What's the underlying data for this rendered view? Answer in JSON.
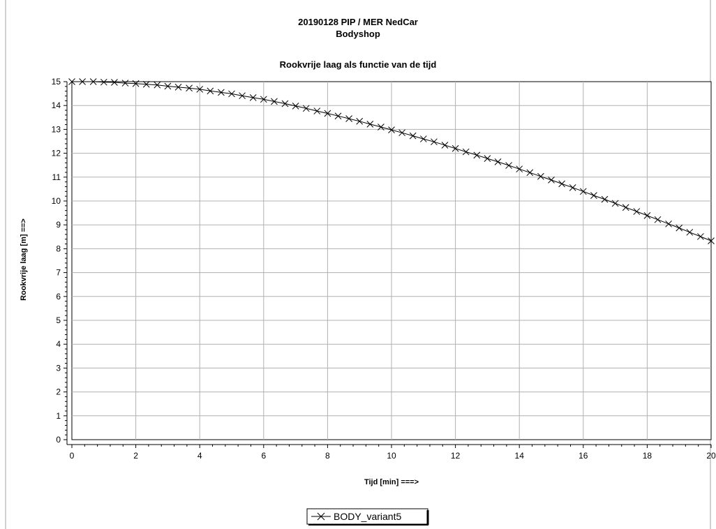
{
  "chart_data": {
    "type": "line",
    "title": "20190128 PIP / MER NedCar",
    "subtitle": "Bodyshop",
    "plot_title": "Rookvrije laag  als functie van de tijd",
    "xlabel": "Tijd [min] ===>",
    "ylabel": "Rookvrije laag [m] ==>",
    "xlim": [
      0,
      20
    ],
    "ylim": [
      0,
      15
    ],
    "x_ticks": [
      0,
      2,
      4,
      6,
      8,
      10,
      12,
      14,
      16,
      18,
      20
    ],
    "y_ticks": [
      0,
      1,
      2,
      3,
      4,
      5,
      6,
      7,
      8,
      9,
      10,
      11,
      12,
      13,
      14,
      15
    ],
    "grid": true,
    "legend_position": "bottom-center",
    "series": [
      {
        "name": "BODY_variant5",
        "color": "#000000",
        "marker": "x",
        "x": [
          0,
          0.33,
          0.67,
          1,
          1.33,
          1.67,
          2,
          2.33,
          2.67,
          3,
          3.33,
          3.67,
          4,
          4.33,
          4.67,
          5,
          5.33,
          5.67,
          6,
          6.33,
          6.67,
          7,
          7.33,
          7.67,
          8,
          8.33,
          8.67,
          9,
          9.33,
          9.67,
          10,
          10.33,
          10.67,
          11,
          11.33,
          11.67,
          12,
          12.33,
          12.67,
          13,
          13.33,
          13.67,
          14,
          14.33,
          14.67,
          15,
          15.33,
          15.67,
          16,
          16.33,
          16.67,
          17,
          17.33,
          17.67,
          18,
          18.33,
          18.67,
          19,
          19.33,
          19.67,
          20
        ],
        "y": [
          15,
          15,
          15,
          14.98,
          14.97,
          14.94,
          14.92,
          14.89,
          14.86,
          14.81,
          14.77,
          14.73,
          14.68,
          14.61,
          14.55,
          14.49,
          14.41,
          14.33,
          14.26,
          14.17,
          14.08,
          13.98,
          13.88,
          13.77,
          13.67,
          13.56,
          13.45,
          13.34,
          13.22,
          13.1,
          12.98,
          12.86,
          12.73,
          12.6,
          12.48,
          12.34,
          12.2,
          12.06,
          11.92,
          11.78,
          11.64,
          11.49,
          11.34,
          11.19,
          11.03,
          10.88,
          10.72,
          10.56,
          10.4,
          10.23,
          10.07,
          9.9,
          9.73,
          9.56,
          9.39,
          9.22,
          9.04,
          8.87,
          8.69,
          8.51,
          8.33
        ]
      }
    ]
  }
}
